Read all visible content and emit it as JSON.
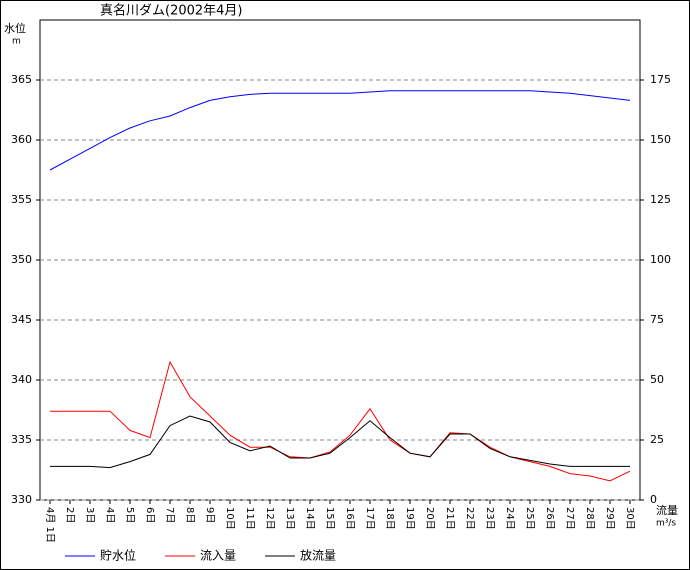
{
  "chart_data": {
    "type": "line",
    "title": "真名川ダム(2002年4月)",
    "y_label": "水位",
    "y_unit": "m",
    "y2_label": "流量",
    "y2_unit": "m³/s",
    "categories": [
      "4月 1日",
      "2日",
      "3日",
      "4日",
      "5日",
      "6日",
      "7日",
      "8日",
      "9日",
      "10日",
      "11日",
      "12日",
      "13日",
      "14日",
      "15日",
      "16日",
      "17日",
      "18日",
      "19日",
      "20日",
      "21日",
      "22日",
      "23日",
      "24日",
      "25日",
      "26日",
      "27日",
      "28日",
      "29日",
      "30日"
    ],
    "series": [
      {
        "name": "貯水位",
        "color": "#0000ff",
        "axis": "y",
        "values": [
          357.5,
          358.4,
          359.3,
          360.2,
          361.0,
          361.6,
          362.0,
          362.7,
          363.3,
          363.6,
          363.8,
          363.9,
          363.9,
          363.9,
          363.9,
          363.9,
          364.0,
          364.1,
          364.1,
          364.1,
          364.1,
          364.1,
          364.1,
          364.1,
          364.1,
          364.0,
          363.9,
          363.7,
          363.5,
          363.3
        ]
      },
      {
        "name": "流入量",
        "color": "#ff0000",
        "axis": "y2",
        "values": [
          37,
          37,
          37,
          37,
          29,
          26,
          57.5,
          43,
          35,
          27,
          22,
          22,
          18,
          17.5,
          20,
          27,
          38,
          25,
          19.5,
          18,
          28,
          27.5,
          22,
          18,
          16,
          14,
          11,
          10,
          8,
          12
        ]
      },
      {
        "name": "放流量",
        "color": "#000000",
        "axis": "y2",
        "values": [
          14,
          14,
          14,
          13.5,
          16,
          19,
          31,
          35,
          32.5,
          24,
          20.5,
          22.5,
          17.5,
          17.5,
          19.5,
          26,
          33,
          26,
          19.5,
          18,
          27.5,
          27.5,
          21.5,
          18,
          16.5,
          15,
          14,
          14,
          14,
          14
        ]
      }
    ],
    "ylim": [
      330,
      370
    ],
    "yticks": [
      330,
      335,
      340,
      345,
      350,
      355,
      360,
      365
    ],
    "y2lim": [
      0,
      200
    ],
    "y2ticks": [
      0,
      25,
      50,
      75,
      100,
      125,
      150,
      175
    ],
    "grid": true,
    "legend": "bottom"
  }
}
